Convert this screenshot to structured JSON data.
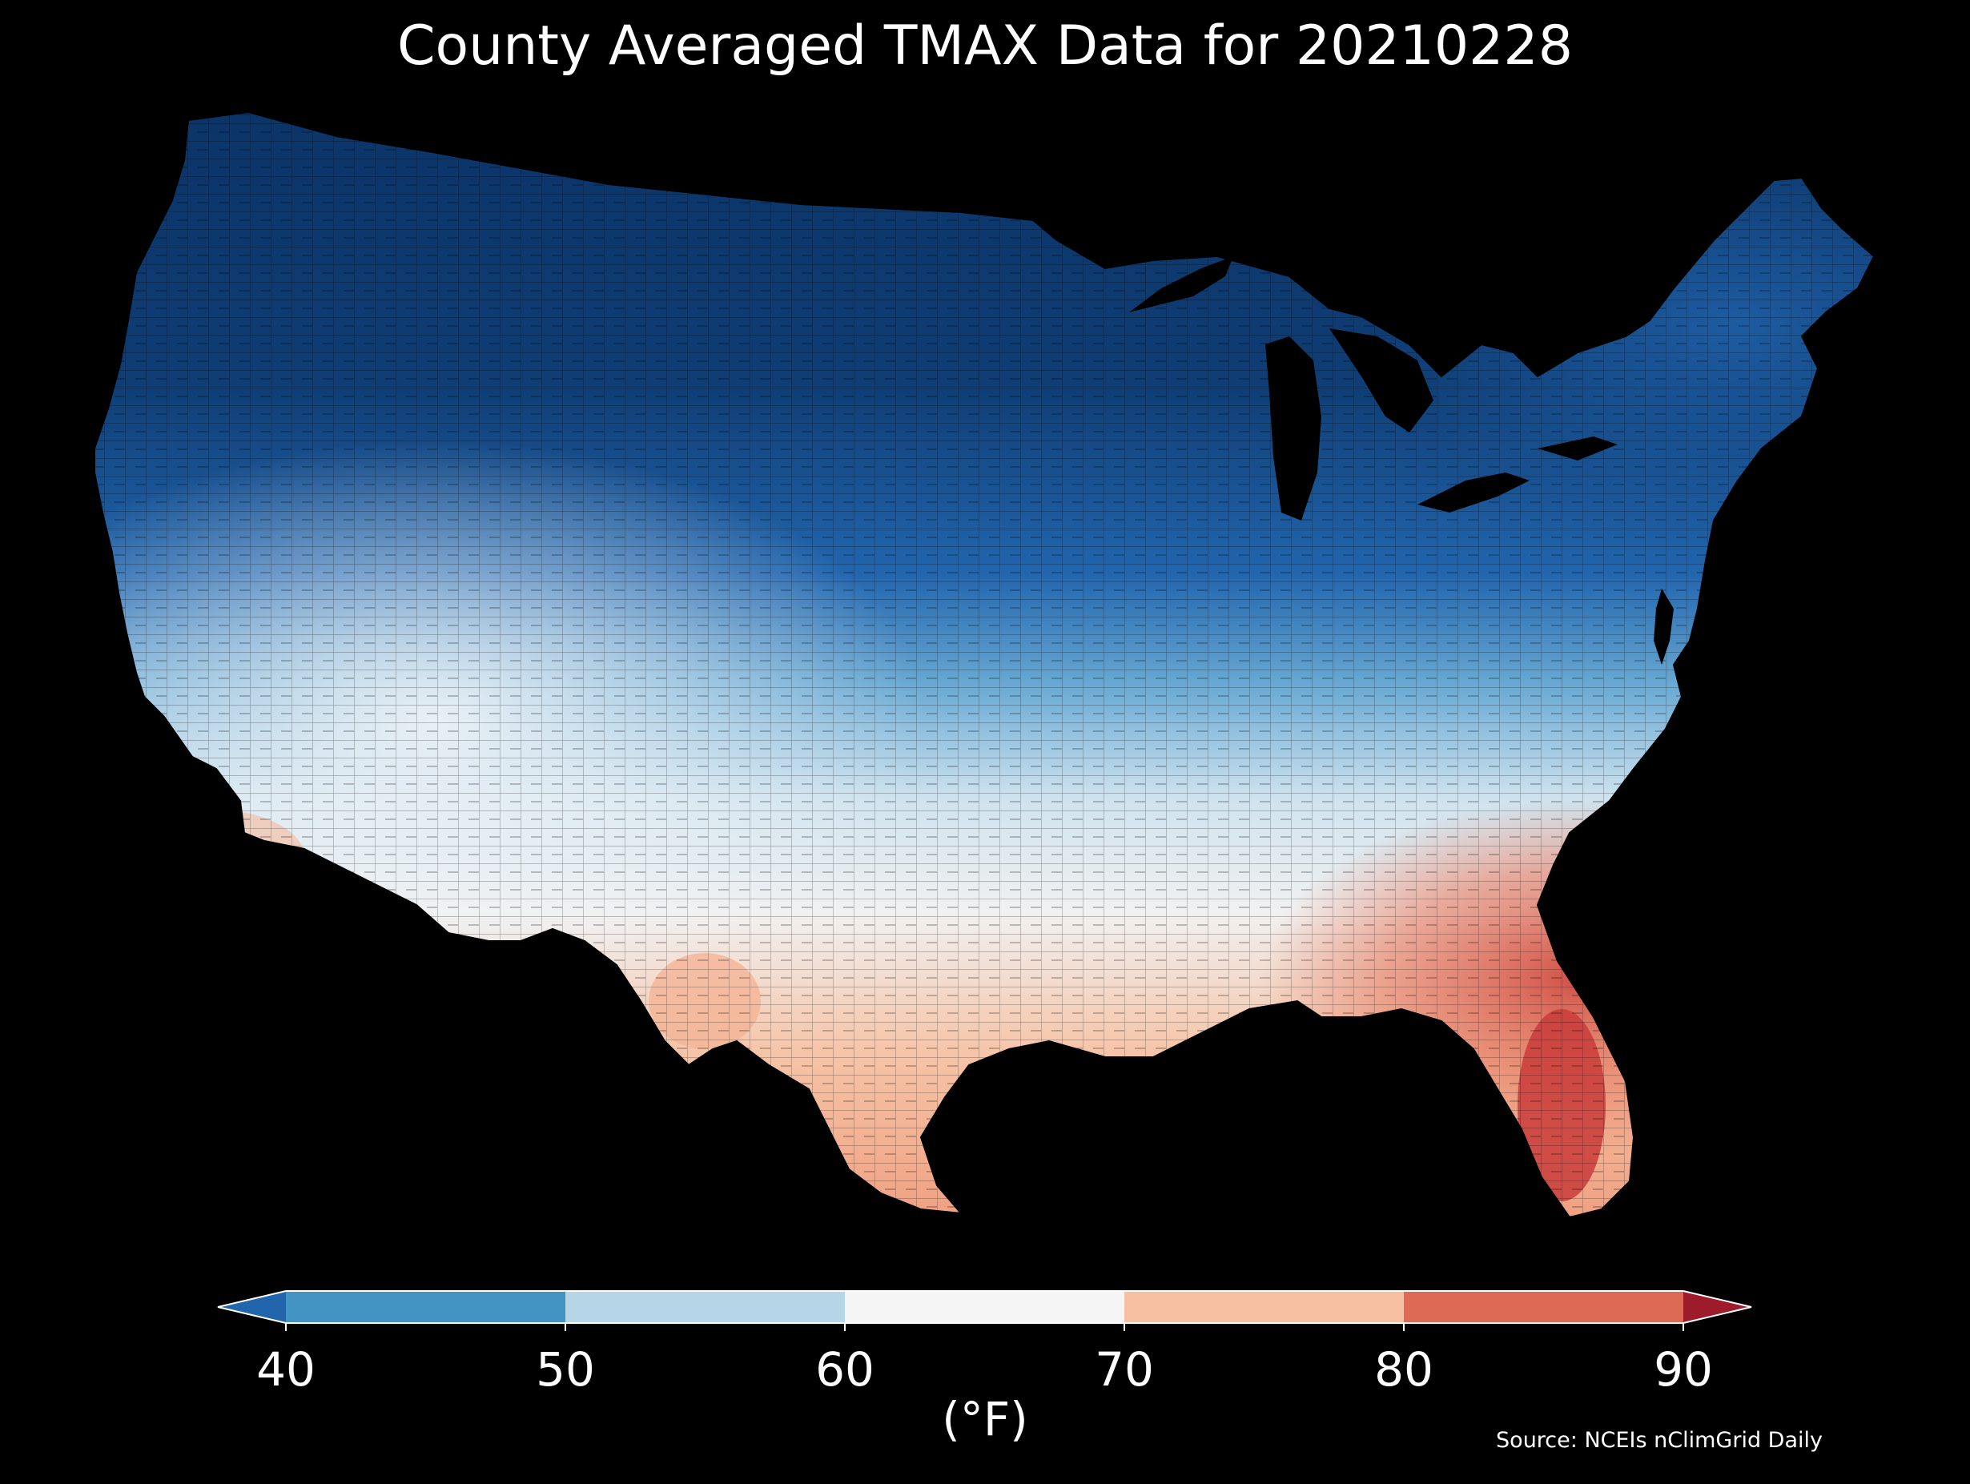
{
  "title": "County Averaged TMAX Data for 20210228",
  "colorbar": {
    "ticks": [
      "40",
      "50",
      "60",
      "70",
      "80",
      "90"
    ],
    "unit": "(°F)",
    "extend": "both",
    "bins": [
      {
        "range": "<40",
        "color": "#2166ac"
      },
      {
        "range": "40-50",
        "color": "#4393c3"
      },
      {
        "range": "50-60",
        "color": "#b6d6e8"
      },
      {
        "range": "60-70",
        "color": "#f5f5f5"
      },
      {
        "range": "70-80",
        "color": "#f8c0a2"
      },
      {
        "range": "80-90",
        "color": "#dc6a55"
      },
      {
        "range": ">90",
        "color": "#9e1b2c"
      }
    ]
  },
  "source": "Source: NCEIs nClimGrid Daily",
  "map_colors": {
    "background": "#000000",
    "deep_cold": "#0b3468",
    "cold": "#1f5fa6",
    "cool": "#4c96c8",
    "mild": "#b8d6e8",
    "neutral": "#f2f2f2",
    "warm": "#f5b89b",
    "hot": "#d9574a",
    "county_lines": "#000000"
  }
}
